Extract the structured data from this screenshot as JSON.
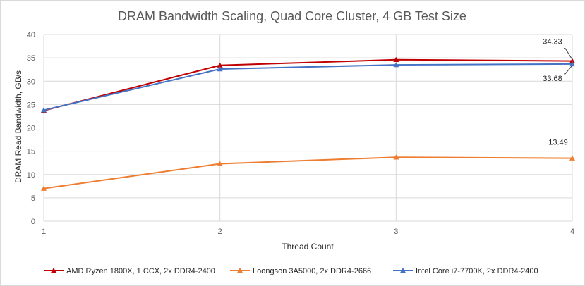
{
  "chart_data": {
    "type": "line",
    "title": "DRAM Bandwidth Scaling, Quad Core Cluster, 4 GB Test Size",
    "xlabel": "Thread Count",
    "ylabel": "DRAM Read Bandwidth, GB/s",
    "x": [
      1,
      2,
      3,
      4
    ],
    "xlim": [
      1,
      4
    ],
    "ylim": [
      0,
      40
    ],
    "yticks": [
      0,
      5,
      10,
      15,
      20,
      25,
      30,
      35,
      40
    ],
    "xticks": [
      1,
      2,
      3,
      4
    ],
    "grid": true,
    "legend_position": "bottom",
    "series": [
      {
        "name": "AMD Ryzen 1800X, 1 CCX, 2x DDR4-2400",
        "color": "#C00000",
        "marker": "triangle",
        "values": [
          23.7,
          33.4,
          34.6,
          34.33
        ]
      },
      {
        "name": "Loongson 3A5000, 2x DDR4-2666",
        "color": "#ED7D31",
        "marker": "triangle",
        "values": [
          7.0,
          12.3,
          13.7,
          13.49
        ]
      },
      {
        "name": "Intel Core i7-7700K, 2x DDR4-2400",
        "color": "#4472C4",
        "marker": "triangle",
        "values": [
          23.8,
          32.6,
          33.5,
          33.68
        ]
      }
    ],
    "data_labels": [
      {
        "series": 0,
        "index": 3,
        "text": "34.33"
      },
      {
        "series": 2,
        "index": 3,
        "text": "33.68"
      },
      {
        "series": 1,
        "index": 3,
        "text": "13.49"
      }
    ]
  }
}
